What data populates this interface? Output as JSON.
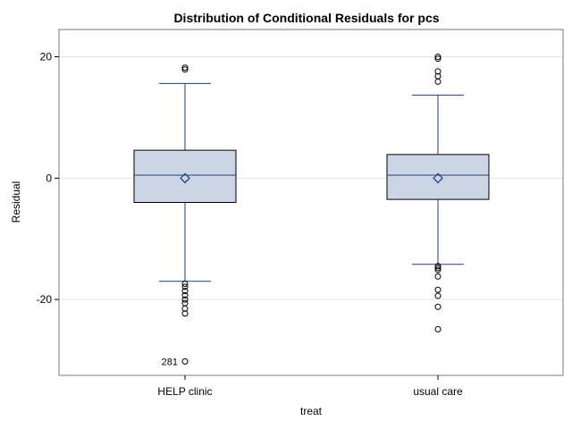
{
  "chart_data": {
    "type": "boxplot",
    "title": "Distribution of Conditional Residuals for pcs",
    "xlabel": "treat",
    "ylabel": "Residual",
    "ylim": [
      -32.5,
      24.5
    ],
    "yticks": [
      -20,
      0,
      20
    ],
    "grid": true,
    "categories": [
      "HELP clinic",
      "usual care"
    ],
    "boxes": [
      {
        "category": "HELP clinic",
        "whisker_low": -17.0,
        "q1": -4.0,
        "median": 0.5,
        "mean": 0.0,
        "q3": 4.6,
        "whisker_high": 15.6,
        "outliers": [
          18.2,
          17.9,
          -17.4,
          -17.9,
          -18.6,
          -19.3,
          -20.0,
          -20.6,
          -21.5,
          -22.3,
          -30.2
        ],
        "outlier_labels": [
          {
            "value": -30.2,
            "label": "281"
          }
        ]
      },
      {
        "category": "usual care",
        "whisker_low": -14.2,
        "q1": -3.5,
        "median": 0.5,
        "mean": 0.0,
        "q3": 3.9,
        "whisker_high": 13.7,
        "outliers": [
          20.0,
          19.7,
          17.6,
          16.8,
          15.9,
          -14.5,
          -14.8,
          -15.1,
          -16.2,
          -18.4,
          -19.4,
          -21.2,
          -24.9
        ],
        "outlier_labels": []
      }
    ]
  },
  "colors": {
    "box_fill": "#cbd5e6",
    "box_stroke": "#000000",
    "whisker": "#1f3d82",
    "median": "#1f3d82",
    "mean_marker": "#1f3d82",
    "outlier": "#000000",
    "grid": "#e3e3e3",
    "frame": "#7a7a7a"
  }
}
